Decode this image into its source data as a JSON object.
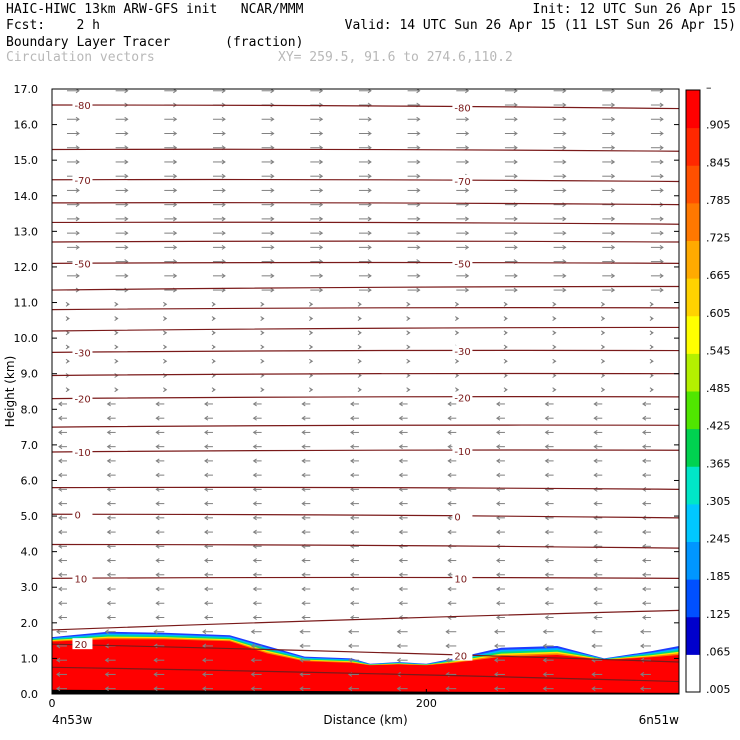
{
  "header": {
    "model_line": "HAIC-HIWC 13km ARW-GFS init   NCAR/MMM",
    "init_line": "Init: 12 UTC Sun 26 Apr 15",
    "fcst_line": "Fcst:    2 h",
    "valid_line": "Valid: 14 UTC Sun 26 Apr 15 (11 LST Sun 26 Apr 15)",
    "field_line": "Boundary Layer Tracer       (fraction)",
    "vector_line": "Circulation vectors",
    "xy_line": "XY= 259.5, 91.6 to 274.6,110.2"
  },
  "colors": {
    "contour": "#7a1a1a",
    "vector": "#808080",
    "colorbar": [
      "#ffffff",
      "#0000cc",
      "#0050ff",
      "#0096ff",
      "#00c8ff",
      "#00e6c8",
      "#00d250",
      "#50e600",
      "#b4f000",
      "#ffff00",
      "#ffd200",
      "#ffaa00",
      "#ff7800",
      "#ff5000",
      "#ff2800",
      "#ff0000"
    ]
  },
  "chart_data": {
    "type": "heatmap",
    "title": "Boundary Layer Tracer",
    "units": "fraction",
    "overlay": "Circulation vectors",
    "xlabel": "Distance (km)",
    "ylabel": "Height (km)",
    "xlim": [
      0,
      335
    ],
    "ylim": [
      0,
      17
    ],
    "x_ticks": [
      {
        "value": 0,
        "label": "0"
      },
      {
        "value": 200,
        "label": "200"
      }
    ],
    "x_end_labels": {
      "left": "4n53w",
      "right": "6n51w"
    },
    "y_ticks": [
      "0.0",
      "1.0",
      "2.0",
      "3.0",
      "4.0",
      "5.0",
      "6.0",
      "7.0",
      "8.0",
      "9.0",
      "10.0",
      "11.0",
      "12.0",
      "13.0",
      "14.0",
      "15.0",
      "16.0",
      "17.0"
    ],
    "colorbar_labels": [
      ".005",
      ".065",
      ".125",
      ".185",
      ".245",
      ".305",
      ".365",
      ".425",
      ".485",
      ".545",
      ".605",
      ".665",
      ".725",
      ".785",
      ".845",
      ".905",
      "–"
    ],
    "tracer_top_km": [
      {
        "x": 0,
        "top": 1.6,
        "full": 1.45
      },
      {
        "x": 30,
        "top": 1.75,
        "full": 1.5
      },
      {
        "x": 60,
        "top": 1.72,
        "full": 1.5
      },
      {
        "x": 95,
        "top": 1.65,
        "full": 1.45
      },
      {
        "x": 115,
        "top": 1.35,
        "full": 1.1
      },
      {
        "x": 135,
        "top": 1.05,
        "full": 0.9
      },
      {
        "x": 160,
        "top": 1.0,
        "full": 0.85
      },
      {
        "x": 170,
        "top": 0.85,
        "full": 0.8
      },
      {
        "x": 185,
        "top": 0.9,
        "full": 0.82
      },
      {
        "x": 200,
        "top": 0.85,
        "full": 0.8
      },
      {
        "x": 215,
        "top": 1.0,
        "full": 0.85
      },
      {
        "x": 240,
        "top": 1.3,
        "full": 1.0
      },
      {
        "x": 270,
        "top": 1.35,
        "full": 1.05
      },
      {
        "x": 295,
        "top": 1.0,
        "full": 0.95
      },
      {
        "x": 320,
        "top": 1.2,
        "full": 1.0
      },
      {
        "x": 335,
        "top": 1.35,
        "full": 1.05
      }
    ],
    "temperature_contours": [
      {
        "label": "-80",
        "y_left": 16.55,
        "y_right": 16.45
      },
      {
        "label": "",
        "y_left": 15.3,
        "y_right": 15.25
      },
      {
        "label": "-70",
        "y_left": 14.45,
        "y_right": 14.4
      },
      {
        "label": "",
        "y_left": 13.8,
        "y_right": 13.75
      },
      {
        "label": "",
        "y_left": 13.25,
        "y_right": 13.2
      },
      {
        "label": "",
        "y_left": 12.7,
        "y_right": 12.7
      },
      {
        "label": "-50",
        "y_left": 12.1,
        "y_right": 12.1
      },
      {
        "label": "",
        "y_left": 11.35,
        "y_right": 11.45
      },
      {
        "label": "",
        "y_left": 10.8,
        "y_right": 10.85
      },
      {
        "label": "",
        "y_left": 10.2,
        "y_right": 10.3
      },
      {
        "label": "-30",
        "y_left": 9.6,
        "y_right": 9.65
      },
      {
        "label": "",
        "y_left": 8.95,
        "y_right": 9.0
      },
      {
        "label": "-20",
        "y_left": 8.3,
        "y_right": 8.35
      },
      {
        "label": "",
        "y_left": 7.5,
        "y_right": 7.55
      },
      {
        "label": "-10",
        "y_left": 6.8,
        "y_right": 6.85
      },
      {
        "label": "",
        "y_left": 5.8,
        "y_right": 5.75
      },
      {
        "label": "0",
        "y_left": 5.05,
        "y_right": 4.95
      },
      {
        "label": "",
        "y_left": 4.2,
        "y_right": 4.1
      },
      {
        "label": "10",
        "y_left": 3.25,
        "y_right": 3.25
      },
      {
        "label": "",
        "y_left": 1.8,
        "y_right": 2.35
      },
      {
        "label": "20",
        "y_left": 1.4,
        "y_right": 0.9
      },
      {
        "label": "",
        "y_left": 0.75,
        "y_right": 0.35
      }
    ]
  }
}
